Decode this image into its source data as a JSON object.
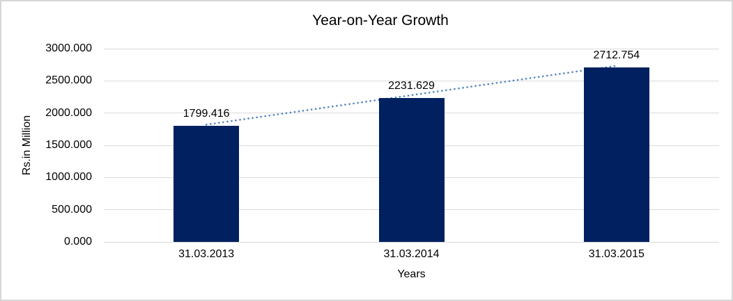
{
  "chart_data": {
    "type": "bar",
    "title": "Year-on-Year Growth",
    "categories": [
      "31.03.2013",
      "31.03.2014",
      "31.03.2015"
    ],
    "values": [
      1799.416,
      2231.629,
      2712.754
    ],
    "data_labels": [
      "1799.416",
      "2231.629",
      "2712.754"
    ],
    "xlabel": "Years",
    "ylabel": "Rs.in Million",
    "ylim": [
      0,
      3000
    ],
    "yticks": [
      0,
      500,
      1000,
      1500,
      2000,
      2500,
      3000
    ],
    "ytick_labels": [
      "0.000",
      "500.000",
      "1000.000",
      "1500.000",
      "2000.000",
      "2500.000",
      "3000.000"
    ],
    "grid": true,
    "legend": "none",
    "bar_color": "#002060",
    "gridline_color": "#d9d9d9",
    "text_color": "#000000",
    "trendline": {
      "type": "linear",
      "style": "dotted",
      "color": "#4f81bd"
    }
  }
}
